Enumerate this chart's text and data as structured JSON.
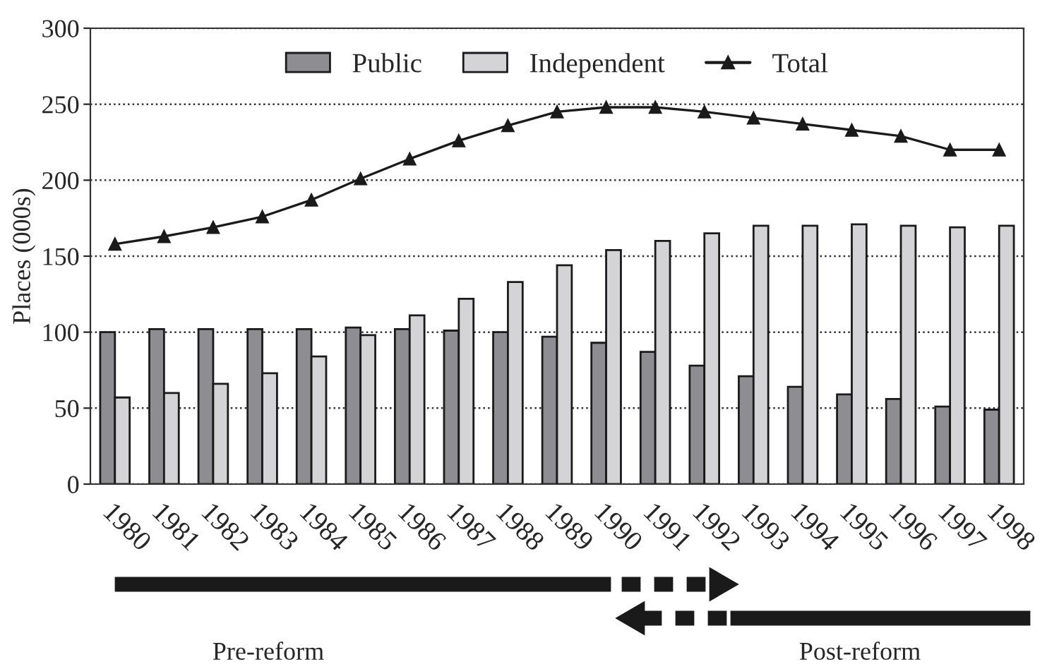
{
  "chart_data": {
    "type": "bar",
    "ylabel": "Places (000s)",
    "categories": [
      "1980",
      "1981",
      "1982",
      "1983",
      "1984",
      "1985",
      "1986",
      "1987",
      "1988",
      "1989",
      "1990",
      "1991",
      "1992",
      "1993",
      "1994",
      "1995",
      "1996",
      "1997",
      "1998"
    ],
    "series": [
      {
        "name": "Public",
        "color": "#8e8e92",
        "values": [
          100,
          102,
          102,
          102,
          102,
          103,
          102,
          101,
          100,
          97,
          93,
          87,
          78,
          71,
          64,
          59,
          56,
          51,
          49
        ]
      },
      {
        "name": "Independent",
        "color": "#d4d4d6",
        "values": [
          57,
          60,
          66,
          73,
          84,
          98,
          111,
          122,
          133,
          144,
          154,
          160,
          165,
          170,
          170,
          171,
          170,
          169,
          170
        ]
      },
      {
        "name": "Total",
        "type": "line",
        "color": "#1a1a1a",
        "marker": "triangle",
        "line_style": "solid",
        "values": [
          158,
          163,
          169,
          176,
          187,
          201,
          214,
          226,
          236,
          245,
          248,
          248,
          245,
          241,
          237,
          233,
          229,
          220,
          220
        ]
      }
    ],
    "ylim": [
      0,
      300
    ],
    "yticks": [
      0,
      50,
      100,
      150,
      200,
      250,
      300
    ],
    "grid": "y",
    "legend": "top",
    "annotations": [
      "Pre-reform",
      "Post-reform"
    ]
  }
}
